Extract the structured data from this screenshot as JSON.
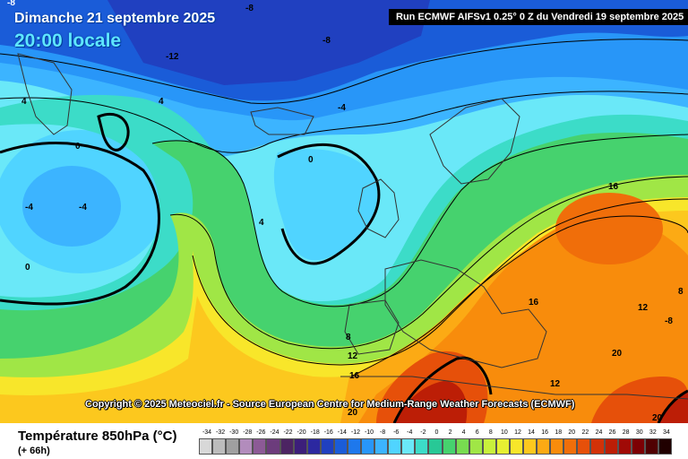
{
  "header": {
    "date_line": "Dimanche 21 septembre 2025",
    "time_line": "20:00 locale",
    "run_info": "Run ECMWF AIFSv1 0.25° 0 Z du Vendredi 19 septembre 2025"
  },
  "map": {
    "copyright": "Copyright © 2025 Meteociel.fr - Source European Centre for Medium-Range Weather Forecasts (ECMWF)",
    "contour_labels": [
      "-8",
      "-8",
      "-12",
      "-8",
      "4",
      "4",
      "-4",
      "0",
      "0",
      "-4",
      "-4",
      "4",
      "0",
      "8",
      "12",
      "16",
      "16",
      "16",
      "12",
      "-8",
      "20",
      "12",
      "20",
      "20",
      "8"
    ]
  },
  "legend": {
    "title": "Température 850hPa (°C)",
    "subtitle": "(+ 66h)",
    "ticks": [
      "-34",
      "-32",
      "-30",
      "-28",
      "-26",
      "-24",
      "-22",
      "-20",
      "-18",
      "-16",
      "-14",
      "-12",
      "-10",
      "-8",
      "-6",
      "-4",
      "-2",
      "0",
      "2",
      "4",
      "6",
      "8",
      "10",
      "12",
      "14",
      "16",
      "18",
      "20",
      "22",
      "24",
      "26",
      "28",
      "30",
      "32",
      "34"
    ],
    "colors": [
      "#d8d8d8",
      "#bcbcbc",
      "#a0a0a0",
      "#b28cbc",
      "#8c5a96",
      "#6c3c7c",
      "#4c2462",
      "#3c1e7a",
      "#2c28a0",
      "#2040c0",
      "#1a5cd8",
      "#1e78ec",
      "#2896f8",
      "#3cb4ff",
      "#50d4ff",
      "#6ae8f8",
      "#3cdcc8",
      "#28c896",
      "#46d26e",
      "#78dc50",
      "#a0e646",
      "#c8f03c",
      "#e6f032",
      "#f8e62a",
      "#fcc81e",
      "#fcaa14",
      "#f88c0c",
      "#f06e0a",
      "#e6500a",
      "#d23208",
      "#bc1e06",
      "#a00a06",
      "#7c0004",
      "#500002",
      "#200000"
    ]
  }
}
